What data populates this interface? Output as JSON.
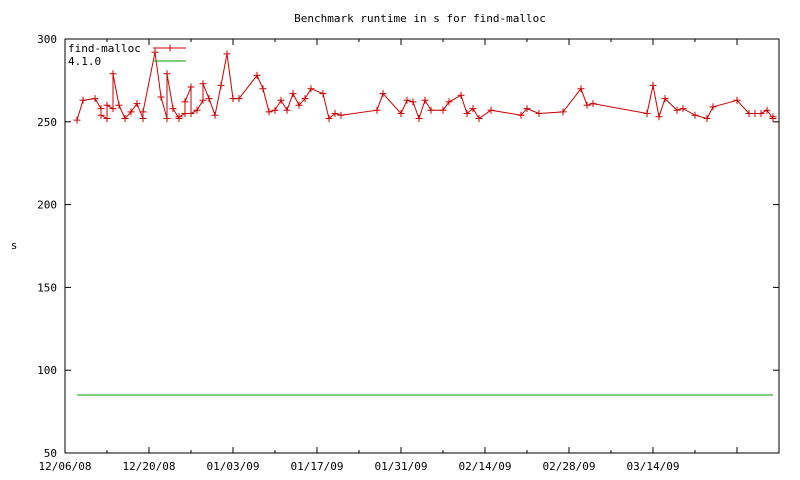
{
  "chart_data": {
    "type": "line",
    "title": "Benchmark runtime in s for find-malloc",
    "xlabel": "",
    "ylabel": "s",
    "x_ticks": [
      "12/06/08",
      "12/20/08",
      "01/03/09",
      "01/17/09",
      "01/31/09",
      "02/14/09",
      "02/28/09",
      "03/14/09"
    ],
    "x_range": [
      "2008-12-06",
      "2009-04-04"
    ],
    "ylim": [
      50,
      300
    ],
    "y_ticks": [
      50,
      100,
      150,
      200,
      250,
      300
    ],
    "grid": false,
    "legend_position": "top-left",
    "series": [
      {
        "name": "find-malloc",
        "color": "#cc0000",
        "marker": "plus",
        "points": [
          [
            "2008-12-08",
            251
          ],
          [
            "2008-12-09",
            263
          ],
          [
            "2008-12-11",
            264
          ],
          [
            "2008-12-12",
            258
          ],
          [
            "2008-12-12",
            254
          ],
          [
            "2008-12-13",
            252
          ],
          [
            "2008-12-13",
            260
          ],
          [
            "2008-12-14",
            258
          ],
          [
            "2008-12-14",
            279
          ],
          [
            "2008-12-15",
            260
          ],
          [
            "2008-12-16",
            252
          ],
          [
            "2008-12-17",
            256
          ],
          [
            "2008-12-18",
            261
          ],
          [
            "2008-12-19",
            252
          ],
          [
            "2008-12-19",
            256
          ],
          [
            "2008-12-21",
            292
          ],
          [
            "2008-12-22",
            265
          ],
          [
            "2008-12-23",
            252
          ],
          [
            "2008-12-23",
            279
          ],
          [
            "2008-12-24",
            258
          ],
          [
            "2008-12-25",
            252
          ],
          [
            "2008-12-25",
            253
          ],
          [
            "2008-12-26",
            255
          ],
          [
            "2008-12-26",
            262
          ],
          [
            "2008-12-27",
            271
          ],
          [
            "2008-12-27",
            255
          ],
          [
            "2008-12-28",
            257
          ],
          [
            "2008-12-29",
            263
          ],
          [
            "2008-12-29",
            273
          ],
          [
            "2008-12-30",
            264
          ],
          [
            "2008-12-31",
            254
          ],
          [
            "2009-01-01",
            272
          ],
          [
            "2009-01-02",
            291
          ],
          [
            "2009-01-03",
            264
          ],
          [
            "2009-01-04",
            264
          ],
          [
            "2009-01-07",
            278
          ],
          [
            "2009-01-08",
            270
          ],
          [
            "2009-01-09",
            256
          ],
          [
            "2009-01-10",
            257
          ],
          [
            "2009-01-11",
            263
          ],
          [
            "2009-01-12",
            257
          ],
          [
            "2009-01-13",
            267
          ],
          [
            "2009-01-14",
            260
          ],
          [
            "2009-01-15",
            264
          ],
          [
            "2009-01-16",
            270
          ],
          [
            "2009-01-18",
            267
          ],
          [
            "2009-01-19",
            252
          ],
          [
            "2009-01-20",
            255
          ],
          [
            "2009-01-21",
            254
          ],
          [
            "2009-01-27",
            257
          ],
          [
            "2009-01-28",
            267
          ],
          [
            "2009-01-31",
            255
          ],
          [
            "2009-02-01",
            263
          ],
          [
            "2009-02-02",
            262
          ],
          [
            "2009-02-03",
            252
          ],
          [
            "2009-02-04",
            263
          ],
          [
            "2009-02-05",
            257
          ],
          [
            "2009-02-07",
            257
          ],
          [
            "2009-02-08",
            262
          ],
          [
            "2009-02-10",
            266
          ],
          [
            "2009-02-11",
            255
          ],
          [
            "2009-02-12",
            258
          ],
          [
            "2009-02-13",
            252
          ],
          [
            "2009-02-15",
            257
          ],
          [
            "2009-02-20",
            254
          ],
          [
            "2009-02-21",
            258
          ],
          [
            "2009-02-23",
            255
          ],
          [
            "2009-02-27",
            256
          ],
          [
            "2009-03-02",
            270
          ],
          [
            "2009-03-03",
            260
          ],
          [
            "2009-03-04",
            261
          ],
          [
            "2009-03-13",
            255
          ],
          [
            "2009-03-14",
            272
          ],
          [
            "2009-03-15",
            253
          ],
          [
            "2009-03-16",
            264
          ],
          [
            "2009-03-18",
            257
          ],
          [
            "2009-03-19",
            258
          ],
          [
            "2009-03-21",
            254
          ],
          [
            "2009-03-23",
            252
          ],
          [
            "2009-03-24",
            259
          ],
          [
            "2009-03-28",
            263
          ],
          [
            "2009-03-30",
            255
          ],
          [
            "2009-03-31",
            255
          ],
          [
            "2009-04-01",
            255
          ],
          [
            "2009-04-02",
            257
          ],
          [
            "2009-04-03",
            252
          ],
          [
            "2009-04-03",
            253
          ]
        ]
      },
      {
        "name": "4.1.0",
        "color": "#00a000",
        "marker": "none",
        "points": [
          [
            "2008-12-08",
            85
          ],
          [
            "2009-04-03",
            85
          ]
        ]
      }
    ]
  }
}
